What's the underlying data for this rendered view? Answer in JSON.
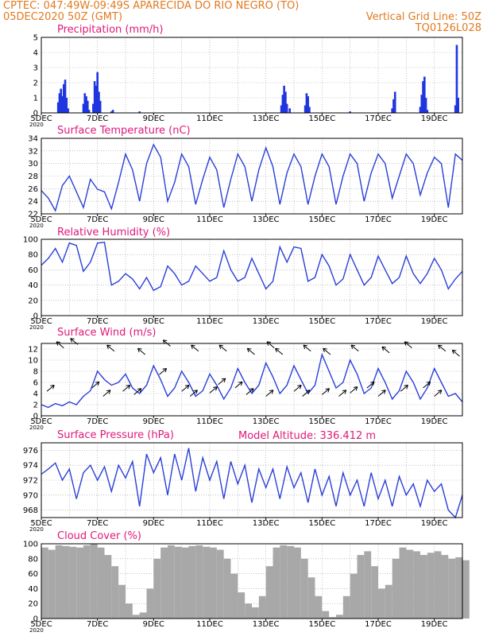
{
  "header": {
    "line1": "CPTEC:   047:49W-09:49S   APARECIDA DO RIO NEGRO (TO)",
    "line2_left": "05DEC2020 50Z (GMT)",
    "line2_right": "Vertical Grid Line: 50Z",
    "line3_right": "TQ0126L028"
  },
  "x_axis": {
    "day_start": 5,
    "day_end": 20,
    "tick_labels": [
      "5DEC",
      "7DEC",
      "9DEC",
      "11DEC",
      "13DEC",
      "15DEC",
      "17DEC",
      "19DEC"
    ],
    "year_label": "2020"
  },
  "extra_label": "Model Altitude: 336.412 m",
  "colors": {
    "line": "#2a3fd8",
    "bar": "#1e35e0",
    "cloud": "#a8a8a8",
    "grid": "#9a9a9a",
    "header": "#e07a20",
    "title": "#e0187a"
  },
  "chart_data": [
    {
      "type": "bar",
      "title": "Precipitation (mm/h)",
      "ylim": [
        0,
        5
      ],
      "yticks": [
        "0",
        "1",
        "2",
        "3",
        "4",
        "5"
      ],
      "x": [
        5.6,
        5.65,
        5.7,
        5.75,
        5.8,
        5.85,
        5.9,
        5.95,
        6.5,
        6.55,
        6.6,
        6.65,
        6.7,
        6.85,
        6.9,
        6.95,
        7.0,
        7.05,
        7.1,
        7.5,
        7.55,
        8.5,
        13.55,
        13.6,
        13.65,
        13.7,
        13.75,
        13.85,
        14.4,
        14.45,
        14.5,
        14.55,
        16.0,
        17.5,
        17.55,
        17.6,
        18.5,
        18.55,
        18.6,
        18.65,
        18.7,
        18.75,
        19.75,
        19.8,
        19.85
      ],
      "values": [
        0.7,
        1.3,
        1.6,
        1.1,
        1.9,
        2.2,
        1.0,
        0.3,
        0.6,
        1.3,
        1.1,
        0.8,
        0.2,
        0.6,
        2.1,
        1.8,
        2.7,
        1.4,
        0.8,
        0.1,
        0.2,
        0.1,
        0.5,
        1.2,
        1.8,
        1.4,
        0.6,
        0.3,
        0.5,
        1.3,
        1.1,
        0.4,
        0.1,
        0.3,
        0.9,
        1.4,
        0.4,
        1.2,
        2.1,
        2.4,
        1.0,
        0.2,
        0.5,
        4.5,
        1.0
      ]
    },
    {
      "type": "line",
      "title": "Surface Temperature (nC)",
      "ylim": [
        22,
        34
      ],
      "yticks": [
        "22",
        "24",
        "26",
        "28",
        "30",
        "32",
        "34"
      ],
      "x": [
        5.0,
        5.25,
        5.5,
        5.75,
        6.0,
        6.25,
        6.5,
        6.75,
        7.0,
        7.25,
        7.5,
        7.75,
        8.0,
        8.25,
        8.5,
        8.75,
        9.0,
        9.25,
        9.5,
        9.75,
        10.0,
        10.25,
        10.5,
        10.75,
        11.0,
        11.25,
        11.5,
        11.75,
        12.0,
        12.25,
        12.5,
        12.75,
        13.0,
        13.25,
        13.5,
        13.75,
        14.0,
        14.25,
        14.5,
        14.75,
        15.0,
        15.25,
        15.5,
        15.75,
        16.0,
        16.25,
        16.5,
        16.75,
        17.0,
        17.25,
        17.5,
        17.75,
        18.0,
        18.25,
        18.5,
        18.75,
        19.0,
        19.25,
        19.5,
        19.75,
        20.0
      ],
      "values": [
        25.7,
        24.5,
        22.5,
        26.5,
        28.0,
        25.5,
        23.0,
        27.5,
        25.9,
        25.5,
        22.8,
        27.0,
        31.5,
        29.0,
        24.0,
        30.0,
        33.0,
        31.0,
        24.0,
        27.0,
        31.5,
        29.5,
        23.5,
        27.5,
        31.0,
        29.0,
        23.0,
        27.5,
        31.5,
        29.5,
        24.0,
        29.0,
        32.5,
        29.5,
        23.5,
        28.5,
        31.5,
        29.5,
        23.5,
        28.0,
        31.5,
        29.5,
        23.5,
        28.0,
        31.5,
        30.0,
        24.0,
        28.5,
        31.5,
        30.0,
        24.5,
        28.0,
        31.5,
        30.0,
        25.0,
        28.5,
        31.0,
        30.0,
        23.0,
        31.5,
        30.5
      ]
    },
    {
      "type": "line",
      "title": "Relative Humidity (%)",
      "ylim": [
        0,
        100
      ],
      "yticks": [
        "0",
        "20",
        "40",
        "60",
        "80",
        "100"
      ],
      "x": [
        5.0,
        5.25,
        5.5,
        5.75,
        6.0,
        6.25,
        6.5,
        6.75,
        7.0,
        7.25,
        7.5,
        7.75,
        8.0,
        8.25,
        8.5,
        8.75,
        9.0,
        9.25,
        9.5,
        9.75,
        10.0,
        10.25,
        10.5,
        10.75,
        11.0,
        11.25,
        11.5,
        11.75,
        12.0,
        12.25,
        12.5,
        12.75,
        13.0,
        13.25,
        13.5,
        13.75,
        14.0,
        14.25,
        14.5,
        14.75,
        15.0,
        15.25,
        15.5,
        15.75,
        16.0,
        16.25,
        16.5,
        16.75,
        17.0,
        17.25,
        17.5,
        17.75,
        18.0,
        18.25,
        18.5,
        18.75,
        19.0,
        19.25,
        19.5,
        19.75,
        20.0
      ],
      "values": [
        66,
        75,
        88,
        70,
        95,
        92,
        58,
        70,
        95,
        96,
        40,
        45,
        55,
        48,
        35,
        50,
        33,
        38,
        65,
        55,
        40,
        45,
        65,
        55,
        45,
        50,
        85,
        60,
        45,
        50,
        75,
        55,
        35,
        45,
        90,
        70,
        90,
        88,
        45,
        50,
        80,
        65,
        40,
        48,
        80,
        60,
        40,
        50,
        78,
        60,
        42,
        50,
        78,
        55,
        42,
        55,
        75,
        60,
        35,
        48,
        58
      ]
    },
    {
      "type": "line",
      "title": "Surface Wind (m/s)",
      "ylim": [
        0,
        13
      ],
      "yticks": [
        "0",
        "2",
        "4",
        "6",
        "8",
        "10",
        "12"
      ],
      "x": [
        5.0,
        5.25,
        5.5,
        5.75,
        6.0,
        6.25,
        6.5,
        6.75,
        7.0,
        7.25,
        7.5,
        7.75,
        8.0,
        8.25,
        8.5,
        8.75,
        9.0,
        9.25,
        9.5,
        9.75,
        10.0,
        10.25,
        10.5,
        10.75,
        11.0,
        11.25,
        11.5,
        11.75,
        12.0,
        12.25,
        12.5,
        12.75,
        13.0,
        13.25,
        13.5,
        13.75,
        14.0,
        14.25,
        14.5,
        14.75,
        15.0,
        15.25,
        15.5,
        15.75,
        16.0,
        16.25,
        16.5,
        16.75,
        17.0,
        17.25,
        17.5,
        17.75,
        18.0,
        18.25,
        18.5,
        18.75,
        19.0,
        19.25,
        19.5,
        19.75,
        20.0
      ],
      "values": [
        2.0,
        1.5,
        2.2,
        1.8,
        2.5,
        2.0,
        3.5,
        4.5,
        8.0,
        6.5,
        5.5,
        6.0,
        7.5,
        5.0,
        4.0,
        5.5,
        9.0,
        6.5,
        3.5,
        5.0,
        8.0,
        6.0,
        3.5,
        4.5,
        7.5,
        5.5,
        3.0,
        5.0,
        8.5,
        6.0,
        4.0,
        5.5,
        9.5,
        7.0,
        4.0,
        5.5,
        9.0,
        6.5,
        4.0,
        5.5,
        11.0,
        8.0,
        5.0,
        6.0,
        10.0,
        7.5,
        4.0,
        5.0,
        8.5,
        6.0,
        3.0,
        4.5,
        8.0,
        6.0,
        3.0,
        5.0,
        8.5,
        6.0,
        3.5,
        4.0,
        2.5
      ],
      "vectors": [
        [
          5.2,
          1.2
        ],
        [
          5.8,
          -1.4
        ],
        [
          6.3,
          -1.6
        ],
        [
          6.8,
          1.0
        ],
        [
          7.2,
          1.5
        ],
        [
          7.6,
          -1.2
        ],
        [
          7.9,
          1.2
        ],
        [
          8.3,
          1.4
        ],
        [
          8.7,
          -1.0
        ],
        [
          9.2,
          0.2
        ],
        [
          9.6,
          -1.5
        ],
        [
          10.0,
          1.2
        ],
        [
          10.3,
          1.5
        ],
        [
          10.6,
          -1.2
        ],
        [
          11.0,
          1.3
        ],
        [
          11.3,
          0.8
        ],
        [
          11.6,
          -1.2
        ],
        [
          11.9,
          1.0
        ],
        [
          12.3,
          1.4
        ],
        [
          12.6,
          -1.0
        ],
        [
          13.0,
          1.5
        ],
        [
          13.3,
          -1.4
        ],
        [
          13.6,
          -1.0
        ],
        [
          14.0,
          1.2
        ],
        [
          14.3,
          1.5
        ],
        [
          14.6,
          -1.2
        ],
        [
          15.0,
          1.4
        ],
        [
          15.3,
          -1.0
        ],
        [
          15.6,
          1.5
        ],
        [
          16.0,
          1.3
        ],
        [
          16.3,
          -1.2
        ],
        [
          16.6,
          1.0
        ],
        [
          17.0,
          1.5
        ],
        [
          17.4,
          -1.1
        ],
        [
          17.8,
          1.2
        ],
        [
          18.2,
          -1.4
        ],
        [
          18.6,
          1.0
        ],
        [
          19.0,
          1.5
        ],
        [
          19.4,
          -1.2
        ],
        [
          19.9,
          -0.9
        ]
      ]
    },
    {
      "type": "line",
      "title": "Surface Pressure (hPa)",
      "ylim": [
        967,
        977
      ],
      "yticks": [
        "968",
        "970",
        "972",
        "974",
        "976"
      ],
      "x": [
        5.0,
        5.25,
        5.5,
        5.75,
        6.0,
        6.25,
        6.5,
        6.75,
        7.0,
        7.25,
        7.5,
        7.75,
        8.0,
        8.25,
        8.5,
        8.75,
        9.0,
        9.25,
        9.5,
        9.75,
        10.0,
        10.25,
        10.5,
        10.75,
        11.0,
        11.25,
        11.5,
        11.75,
        12.0,
        12.25,
        12.5,
        12.75,
        13.0,
        13.25,
        13.5,
        13.75,
        14.0,
        14.25,
        14.5,
        14.75,
        15.0,
        15.25,
        15.5,
        15.75,
        16.0,
        16.25,
        16.5,
        16.75,
        17.0,
        17.25,
        17.5,
        17.75,
        18.0,
        18.25,
        18.5,
        18.75,
        19.0,
        19.25,
        19.5,
        19.75,
        20.0
      ],
      "values": [
        972.8,
        973.5,
        974.3,
        972.0,
        973.5,
        969.5,
        973.0,
        974.0,
        972.0,
        973.8,
        970.5,
        974.0,
        972.3,
        974.5,
        968.5,
        975.5,
        973.0,
        975.0,
        970.0,
        975.5,
        972.0,
        976.3,
        970.5,
        975.0,
        972.0,
        974.5,
        969.5,
        974.5,
        971.5,
        974.0,
        969.0,
        973.5,
        971.0,
        973.5,
        969.5,
        973.8,
        971.0,
        973.0,
        969.0,
        973.5,
        970.0,
        972.5,
        968.5,
        973.0,
        970.0,
        972.0,
        968.5,
        973.0,
        969.5,
        972.0,
        968.5,
        972.5,
        970.0,
        971.5,
        968.5,
        972.0,
        970.5,
        971.5,
        968.0,
        967.0,
        970.0
      ]
    },
    {
      "type": "area",
      "title": "Cloud Cover (%)",
      "ylim": [
        0,
        100
      ],
      "yticks": [
        "0",
        "20",
        "40",
        "60",
        "80",
        "100"
      ],
      "x": [
        5.0,
        5.25,
        5.5,
        5.75,
        6.0,
        6.25,
        6.5,
        6.75,
        7.0,
        7.25,
        7.5,
        7.75,
        8.0,
        8.25,
        8.5,
        8.75,
        9.0,
        9.25,
        9.5,
        9.75,
        10.0,
        10.25,
        10.5,
        10.75,
        11.0,
        11.25,
        11.5,
        11.75,
        12.0,
        12.25,
        12.5,
        12.75,
        13.0,
        13.25,
        13.5,
        13.75,
        14.0,
        14.25,
        14.5,
        14.75,
        15.0,
        15.25,
        15.5,
        15.75,
        16.0,
        16.25,
        16.5,
        16.75,
        17.0,
        17.25,
        17.5,
        17.75,
        18.0,
        18.25,
        18.5,
        18.75,
        19.0,
        19.25,
        19.5,
        19.75,
        20.0
      ],
      "values": [
        95,
        92,
        98,
        97,
        96,
        95,
        98,
        100,
        95,
        85,
        70,
        45,
        20,
        5,
        8,
        40,
        80,
        95,
        98,
        96,
        95,
        97,
        98,
        96,
        95,
        92,
        80,
        60,
        35,
        20,
        15,
        30,
        70,
        95,
        98,
        97,
        95,
        80,
        55,
        30,
        10,
        2,
        5,
        30,
        60,
        85,
        90,
        70,
        40,
        45,
        80,
        95,
        92,
        90,
        85,
        88,
        90,
        85,
        80,
        82,
        78
      ]
    }
  ]
}
